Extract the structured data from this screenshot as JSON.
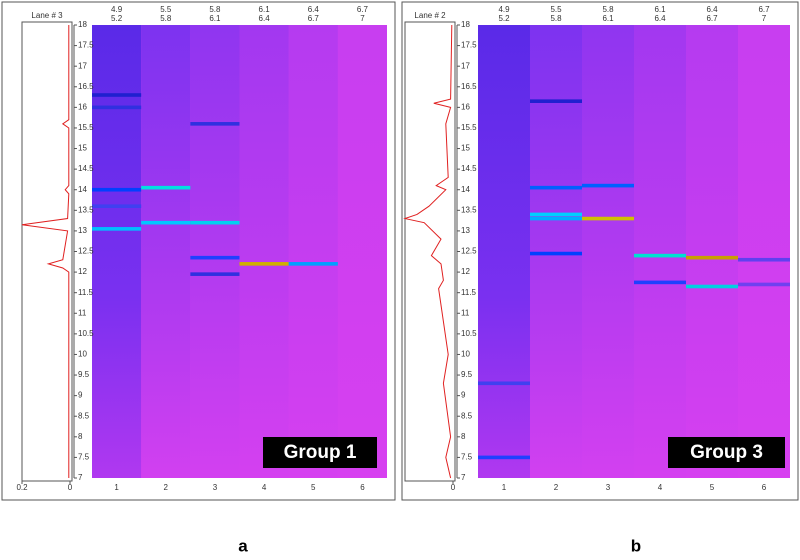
{
  "panels": [
    {
      "lane_label": "Lane # 3",
      "trace_xlim": [
        0.2,
        0
      ],
      "trace_xticks": [
        0.2,
        0
      ],
      "ylim": [
        7,
        18
      ],
      "yticks": [
        7,
        7.5,
        8,
        8.5,
        9,
        9.5,
        10,
        10.5,
        11,
        11.5,
        12,
        12.5,
        13,
        13.5,
        14,
        14.5,
        15,
        15.5,
        16,
        16.5,
        17,
        17.5,
        18
      ],
      "columns": [
        {
          "label": "1",
          "top": [
            "4.9",
            "5.2"
          ]
        },
        {
          "label": "2",
          "top": [
            "5.5",
            "5.8"
          ]
        },
        {
          "label": "3",
          "top": [
            "5.8",
            "6.1"
          ]
        },
        {
          "label": "4",
          "top": [
            "6.1",
            "6.4"
          ]
        },
        {
          "label": "5",
          "top": [
            "6.4",
            "6.7"
          ]
        },
        {
          "label": "6",
          "top": [
            "6.7",
            "7"
          ]
        }
      ],
      "bands": [
        {
          "column": 0,
          "y": 16.3,
          "color": "#2020d0"
        },
        {
          "column": 0,
          "y": 16.0,
          "color": "#3030e0"
        },
        {
          "column": 0,
          "y": 14.0,
          "color": "#0040ff"
        },
        {
          "column": 0,
          "y": 13.6,
          "color": "#4040f0"
        },
        {
          "column": 0,
          "y": 13.05,
          "color": "#00c0ff"
        },
        {
          "column": 1,
          "y": 14.05,
          "color": "#00e0e0"
        },
        {
          "column": 1,
          "y": 13.2,
          "color": "#00c8ff"
        },
        {
          "column": 2,
          "y": 15.6,
          "color": "#3030e0"
        },
        {
          "column": 2,
          "y": 13.2,
          "color": "#00d0f0"
        },
        {
          "column": 2,
          "y": 12.35,
          "color": "#2040ff"
        },
        {
          "column": 2,
          "y": 11.95,
          "color": "#3030e0"
        },
        {
          "column": 3,
          "y": 12.2,
          "color": "#d0b000"
        },
        {
          "column": 4,
          "y": 12.2,
          "color": "#00a0ff"
        }
      ],
      "trace": {
        "positions": [
          18,
          15.7,
          15.6,
          15.5,
          14.1,
          14.0,
          13.9,
          13.3,
          13.15,
          13.0,
          12.3,
          12.2,
          12.1,
          12.0,
          7
        ],
        "values": [
          0.005,
          0.005,
          0.03,
          0.005,
          0.005,
          0.02,
          0.005,
          0.01,
          0.2,
          0.01,
          0.03,
          0.09,
          0.03,
          0.005,
          0.005
        ]
      },
      "group": "Group 1",
      "letter": "a"
    },
    {
      "lane_label": "Lane # 2",
      "trace_xlim": [
        0.2,
        0
      ],
      "trace_xticks": [
        0
      ],
      "ylim": [
        7,
        18
      ],
      "yticks": [
        7,
        7.5,
        8,
        8.5,
        9,
        9.5,
        10,
        10.5,
        11,
        11.5,
        12,
        12.5,
        13,
        13.5,
        14,
        14.5,
        15,
        15.5,
        16,
        16.5,
        17,
        17.5,
        18
      ],
      "columns": [
        {
          "label": "1",
          "top": [
            "4.9",
            "5.2"
          ]
        },
        {
          "label": "2",
          "top": [
            "5.5",
            "5.8"
          ]
        },
        {
          "label": "3",
          "top": [
            "5.8",
            "6.1"
          ]
        },
        {
          "label": "4",
          "top": [
            "6.1",
            "6.4"
          ]
        },
        {
          "label": "5",
          "top": [
            "6.4",
            "6.7"
          ]
        },
        {
          "label": "6",
          "top": [
            "6.7",
            "7"
          ]
        }
      ],
      "bands": [
        {
          "column": 0,
          "y": 9.3,
          "color": "#4040f0"
        },
        {
          "column": 0,
          "y": 7.5,
          "color": "#2040ff"
        },
        {
          "column": 1,
          "y": 16.15,
          "color": "#2020d0"
        },
        {
          "column": 1,
          "y": 14.05,
          "color": "#0060ff"
        },
        {
          "column": 1,
          "y": 13.4,
          "color": "#00d0ff"
        },
        {
          "column": 1,
          "y": 13.3,
          "color": "#00b0ff"
        },
        {
          "column": 1,
          "y": 12.45,
          "color": "#0040ff"
        },
        {
          "column": 2,
          "y": 14.1,
          "color": "#0060ff"
        },
        {
          "column": 2,
          "y": 13.3,
          "color": "#d0c000"
        },
        {
          "column": 3,
          "y": 12.4,
          "color": "#00e0d0"
        },
        {
          "column": 3,
          "y": 11.75,
          "color": "#2040ff"
        },
        {
          "column": 4,
          "y": 12.35,
          "color": "#c8a000"
        },
        {
          "column": 4,
          "y": 11.65,
          "color": "#00d0e0"
        },
        {
          "column": 5,
          "y": 12.3,
          "color": "#6040f0"
        },
        {
          "column": 5,
          "y": 11.7,
          "color": "#7040f0"
        }
      ],
      "trace": {
        "positions": [
          18,
          16.2,
          16.1,
          16.0,
          15.6,
          14.3,
          14.1,
          14.0,
          13.6,
          13.4,
          13.3,
          13.2,
          12.8,
          12.4,
          12.2,
          11.8,
          11.6,
          10,
          9.3,
          8,
          7.5,
          7
        ],
        "values": [
          0.005,
          0.01,
          0.08,
          0.01,
          0.03,
          0.02,
          0.07,
          0.03,
          0.1,
          0.15,
          0.2,
          0.12,
          0.05,
          0.09,
          0.05,
          0.04,
          0.06,
          0.02,
          0.04,
          0.01,
          0.03,
          0.01
        ]
      },
      "group": "Group 3",
      "letter": "b"
    }
  ]
}
